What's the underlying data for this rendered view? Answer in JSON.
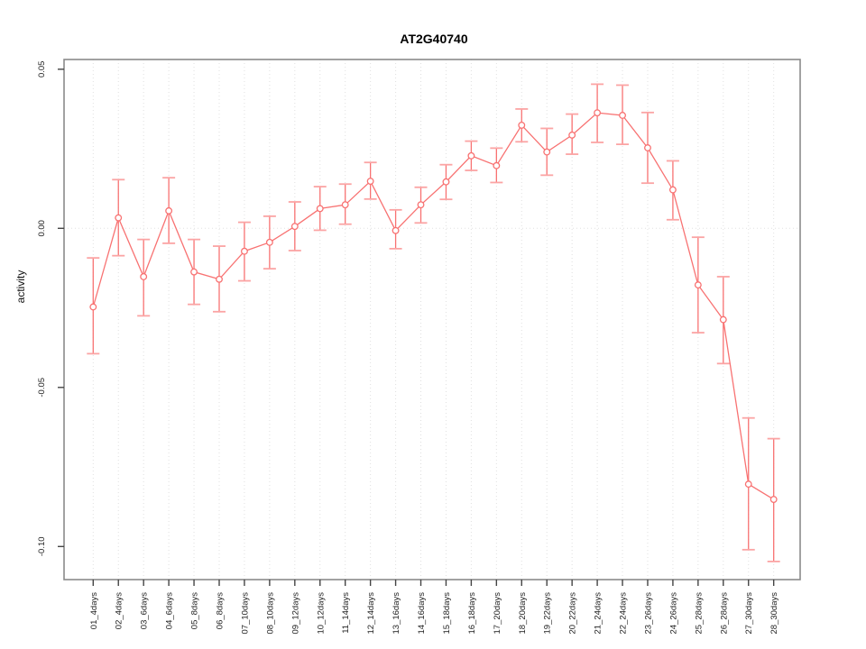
{
  "chart_data": {
    "type": "line",
    "title": "AT2G40740",
    "xlabel": "",
    "ylabel": "activity",
    "categories": [
      "01_4days",
      "02_4days",
      "03_6days",
      "04_6days",
      "05_8days",
      "06_8days",
      "07_10days",
      "08_10days",
      "09_12days",
      "10_12days",
      "11_14days",
      "12_14days",
      "13_16days",
      "14_16days",
      "15_18days",
      "16_18days",
      "17_20days",
      "18_20days",
      "19_22days",
      "20_22days",
      "21_24days",
      "22_24days",
      "23_26days",
      "24_26days",
      "25_28days",
      "26_28days",
      "27_30days",
      "28_30days"
    ],
    "series": [
      {
        "name": "activity",
        "values": [
          -0.0247,
          0.0033,
          -0.0152,
          0.0055,
          -0.0137,
          -0.016,
          -0.0072,
          -0.0044,
          0.0006,
          0.0062,
          0.0074,
          0.0148,
          -0.0007,
          0.0074,
          0.0146,
          0.0228,
          0.0197,
          0.0324,
          0.024,
          0.0293,
          0.0363,
          0.0355,
          0.0253,
          0.0121,
          -0.0178,
          -0.0287,
          -0.0804,
          -0.0852
        ],
        "upper": [
          -0.0093,
          0.0153,
          -0.0035,
          0.0159,
          -0.0035,
          -0.0056,
          0.0019,
          0.0038,
          0.0083,
          0.0131,
          0.0139,
          0.0207,
          0.0058,
          0.0129,
          0.02,
          0.0274,
          0.0252,
          0.0375,
          0.0314,
          0.0359,
          0.0453,
          0.045,
          0.0364,
          0.0212,
          -0.0028,
          -0.0152,
          -0.0596,
          -0.0661
        ],
        "lower": [
          -0.0394,
          -0.0086,
          -0.0275,
          -0.0047,
          -0.0239,
          -0.0262,
          -0.0165,
          -0.0127,
          -0.007,
          -0.0006,
          0.0013,
          0.0092,
          -0.0064,
          0.0017,
          0.0091,
          0.0182,
          0.0144,
          0.0272,
          0.0167,
          0.0233,
          0.027,
          0.0264,
          0.0142,
          0.0027,
          -0.0328,
          -0.0425,
          -0.101,
          -0.1047
        ]
      }
    ],
    "ylim": [
      -0.109,
      0.051
    ],
    "yticks": [
      "0.05",
      "0.00",
      "-0.05",
      "-0.10"
    ],
    "grid": {
      "vertical": "dotted at every category",
      "horizontal": "dotted at 0.00 only"
    },
    "legend": "none",
    "marker": "open-circle",
    "colors": {
      "series": "#f87272",
      "error_cap": "#fba4a4",
      "grid": "#e0e0e0",
      "box": "#8a8a8a",
      "tick": "#444444",
      "background": "#ffffff"
    }
  }
}
